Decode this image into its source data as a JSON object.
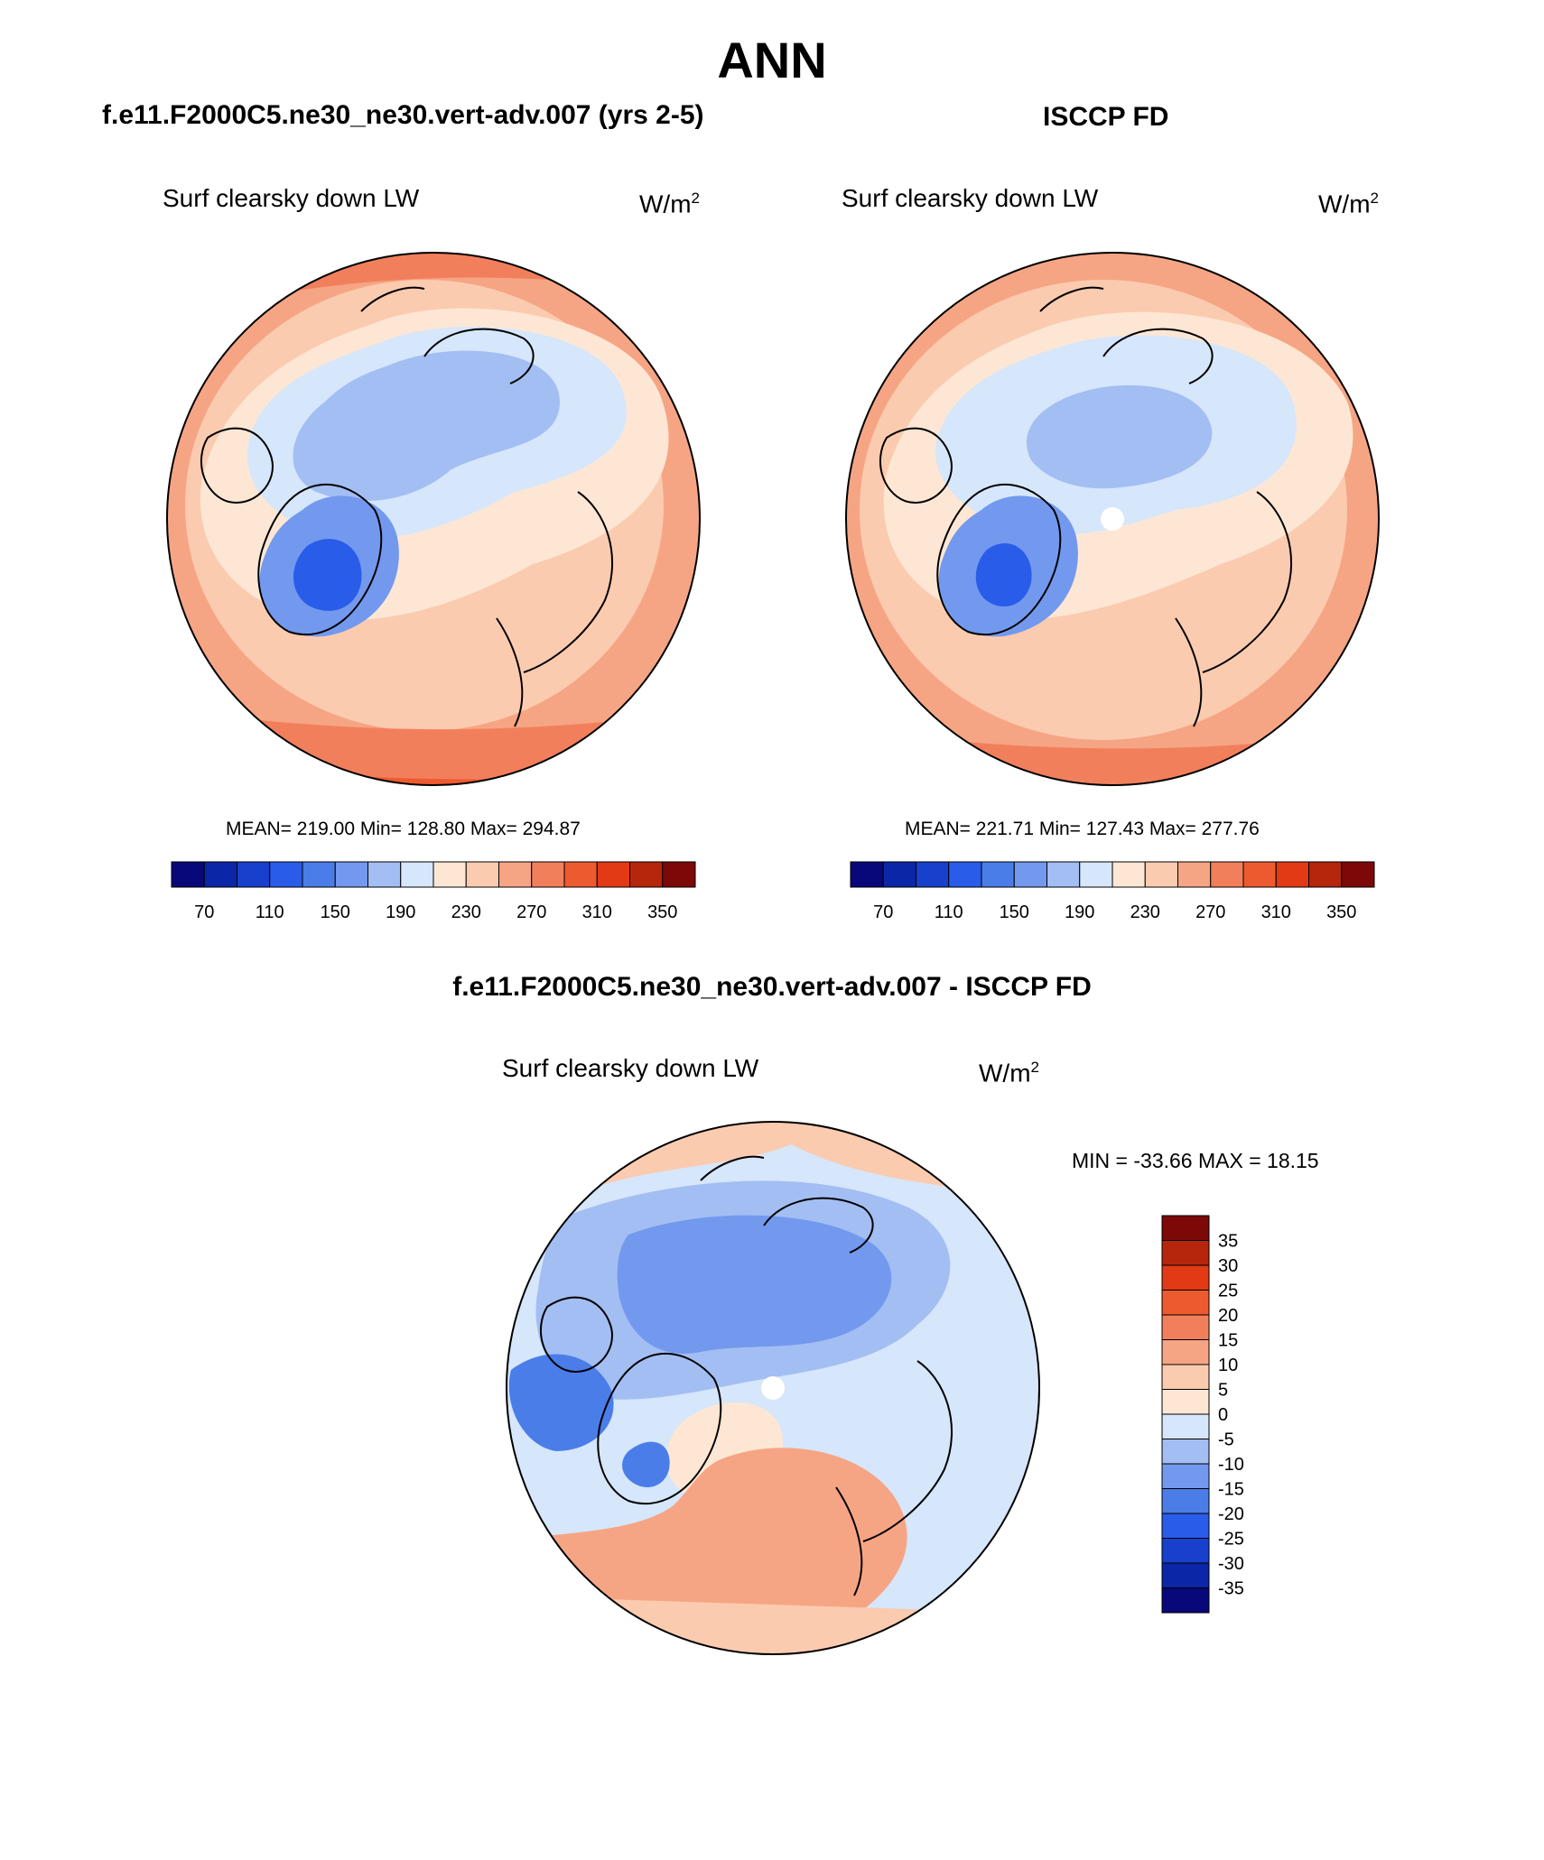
{
  "title": "ANN",
  "units": {
    "base": "W/m",
    "exp": "2"
  },
  "variable": "Surf clearsky down LW",
  "panels": {
    "model": {
      "title": "f.e11.F2000C5.ne30_ne30.vert-adv.007 (yrs 2-5)",
      "stats": "MEAN= 219.00  Min= 128.80  Max= 294.87",
      "mean": 219.0,
      "min": 128.8,
      "max": 294.87
    },
    "obs": {
      "title": "ISCCP FD",
      "stats": "MEAN= 221.71  Min= 127.43  Max= 277.76",
      "mean": 221.71,
      "min": 127.43,
      "max": 277.76
    },
    "diff": {
      "title": "f.e11.F2000C5.ne30_ne30.vert-adv.007 - ISCCP FD",
      "stats": "MIN = -33.66 MAX =  18.15",
      "min": -33.66,
      "max": 18.15
    }
  },
  "colorbar_abs": {
    "colors": [
      "#08087a",
      "#0b26a6",
      "#1740cc",
      "#2a5cea",
      "#4a7de8",
      "#7399ee",
      "#a3bef2",
      "#d6e6fb",
      "#fde7d4",
      "#fbcbb0",
      "#f6a584",
      "#f27f5c",
      "#ee5a2f",
      "#e13a14",
      "#b6260d",
      "#7d0808"
    ],
    "tick_labels": [
      "70",
      "110",
      "150",
      "190",
      "230",
      "270",
      "310",
      "350"
    ]
  },
  "colorbar_diff": {
    "colors": [
      "#08087a",
      "#0b26a6",
      "#1740cc",
      "#2a5cea",
      "#4a7de8",
      "#7399ee",
      "#a3bef2",
      "#d6e6fb",
      "#fde7d4",
      "#fbcbb0",
      "#f6a584",
      "#f27f5c",
      "#ee5a2f",
      "#e13a14",
      "#b6260d",
      "#7d0808"
    ],
    "tick_labels": [
      "-35",
      "-30",
      "-25",
      "-20",
      "-15",
      "-10",
      "-5",
      "0",
      "5",
      "10",
      "15",
      "20",
      "25",
      "30",
      "35"
    ]
  }
}
